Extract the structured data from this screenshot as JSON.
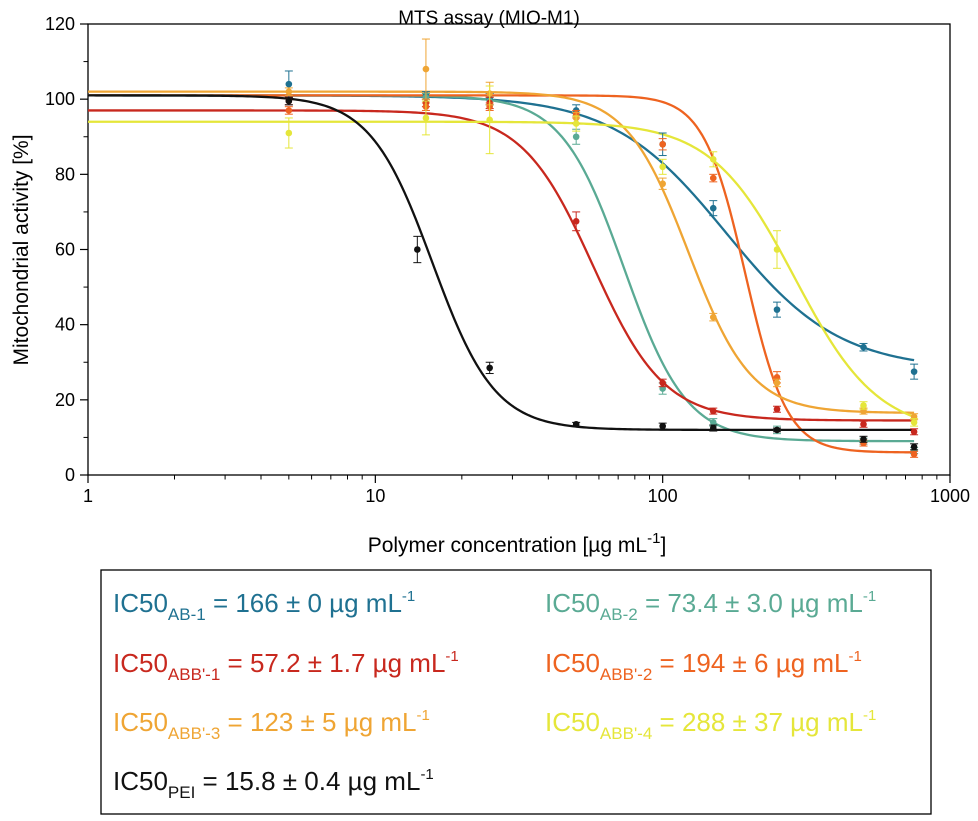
{
  "chart_data": {
    "type": "scatter",
    "title": "MTS assay (MIO-M1)",
    "xlabel": {
      "main": "Polymer concentration [µg mL",
      "sup": "-1",
      "close": "]"
    },
    "ylabel": "Mitochondrial activity [%]",
    "x_scale": "log",
    "xlim": [
      1,
      1000
    ],
    "ylim": [
      0,
      120
    ],
    "x_ticks": [
      1,
      10,
      100,
      1000
    ],
    "x_tick_labels": [
      "1",
      "10",
      "100",
      "1000"
    ],
    "y_ticks": [
      0,
      20,
      40,
      60,
      80,
      100,
      120
    ],
    "y_tick_labels": [
      "0",
      "20",
      "40",
      "60",
      "80",
      "100",
      "120"
    ],
    "grid": false,
    "legend_position": "bottom",
    "series": [
      {
        "key": "AB-1",
        "color": "#1f7191",
        "fit": {
          "top": 101,
          "bottom": 28,
          "ic50": 166,
          "hill": 2.2
        },
        "x": [
          5,
          15,
          25,
          50,
          100,
          150,
          250,
          500,
          750
        ],
        "y": [
          104,
          101,
          100,
          97,
          88,
          71,
          44,
          34,
          27.5
        ],
        "err": [
          3.5,
          1,
          1.5,
          1.5,
          3,
          2,
          2,
          1,
          2
        ]
      },
      {
        "key": "AB-2",
        "color": "#5aaa94",
        "fit": {
          "top": 101,
          "bottom": 9,
          "ic50": 73.4,
          "hill": 4
        },
        "x": [
          15,
          25,
          50,
          100,
          150,
          250,
          500,
          750
        ],
        "y": [
          100.5,
          99.5,
          90,
          23,
          14,
          12,
          9,
          6.5
        ],
        "err": [
          1,
          1,
          2,
          1.5,
          1,
          1,
          0.8,
          0.8
        ]
      },
      {
        "key": "ABB'-1",
        "color": "#c8281e",
        "fit": {
          "top": 97,
          "bottom": 14.5,
          "ic50": 57.2,
          "hill": 3.5
        },
        "x": [
          5,
          15,
          25,
          50,
          100,
          150,
          250,
          500,
          750
        ],
        "y": [
          99.5,
          99,
          99,
          67.5,
          24.5,
          17,
          17.5,
          13.5,
          11.5
        ],
        "err": [
          1,
          1,
          1.5,
          2.5,
          1,
          0.8,
          0.8,
          0.8,
          0.8
        ]
      },
      {
        "key": "ABB'-2",
        "color": "#ee6320",
        "fit": {
          "top": 101,
          "bottom": 6,
          "ic50": 194,
          "hill": 6
        },
        "x": [
          5,
          15,
          25,
          50,
          100,
          150,
          250,
          500,
          750
        ],
        "y": [
          97,
          98,
          98,
          96,
          88,
          79,
          26,
          8.5,
          5.5
        ],
        "err": [
          1,
          1,
          1,
          1,
          1.5,
          1,
          1.5,
          0.8,
          0.8
        ]
      },
      {
        "key": "ABB'-3",
        "color": "#efa534",
        "fit": {
          "top": 102,
          "bottom": 16.5,
          "ic50": 123,
          "hill": 4
        },
        "x": [
          5,
          15,
          25,
          50,
          100,
          150,
          250,
          500,
          750
        ],
        "y": [
          102,
          108,
          101.5,
          95,
          77.5,
          42,
          24.5,
          17,
          15.5
        ],
        "err": [
          1,
          8,
          3,
          1.5,
          1.5,
          1,
          1,
          0.8,
          0.8
        ]
      },
      {
        "key": "ABB'-4",
        "color": "#e5e63a",
        "fit": {
          "top": 94,
          "bottom": 11,
          "ic50": 288,
          "hill": 3
        },
        "x": [
          5,
          15,
          25,
          50,
          100,
          150,
          250,
          500,
          750
        ],
        "y": [
          91,
          95,
          94.5,
          93.5,
          82,
          84,
          60,
          18.5,
          14
        ],
        "err": [
          4,
          4.5,
          9,
          2,
          2,
          2,
          5,
          1,
          1
        ]
      },
      {
        "key": "PEI",
        "color": "#111111",
        "fit": {
          "top": 101,
          "bottom": 12,
          "ic50": 15.8,
          "hill": 4
        },
        "x": [
          5,
          14,
          25,
          50,
          100,
          150,
          250,
          500,
          750
        ],
        "y": [
          99.5,
          60,
          28.5,
          13.5,
          13,
          12.5,
          12,
          9.5,
          7.5
        ],
        "err": [
          1,
          3.5,
          1.5,
          0.5,
          0.8,
          0.8,
          0.5,
          0.8,
          0.8
        ]
      }
    ],
    "legend": [
      {
        "base": "IC50",
        "sub": "AB-1",
        "rest": " = 166 ± 0 µg mL",
        "sup": "-1",
        "color": "#1f7191"
      },
      {
        "base": "IC50",
        "sub": "AB-2",
        "rest": " = 73.4 ± 3.0 µg mL",
        "sup": "-1",
        "color": "#5aaa94"
      },
      {
        "base": "IC50",
        "sub": "ABB'-1",
        "rest": " = 57.2 ± 1.7 µg mL",
        "sup": "-1",
        "color": "#c8281e"
      },
      {
        "base": "IC50",
        "sub": "ABB'-2",
        "rest": " = 194 ± 6 µg mL",
        "sup": "-1",
        "color": "#ee6320"
      },
      {
        "base": "IC50",
        "sub": "ABB'-3",
        "rest": " = 123 ± 5 µg mL",
        "sup": "-1",
        "color": "#efa534"
      },
      {
        "base": "IC50",
        "sub": "ABB'-4",
        "rest": " = 288 ± 37 µg mL",
        "sup": "-1",
        "color": "#e5e63a"
      },
      {
        "base": "IC50",
        "sub": "PEI",
        "rest": " = 15.8 ± 0.4 µg mL",
        "sup": "-1",
        "color": "#111111"
      }
    ]
  }
}
